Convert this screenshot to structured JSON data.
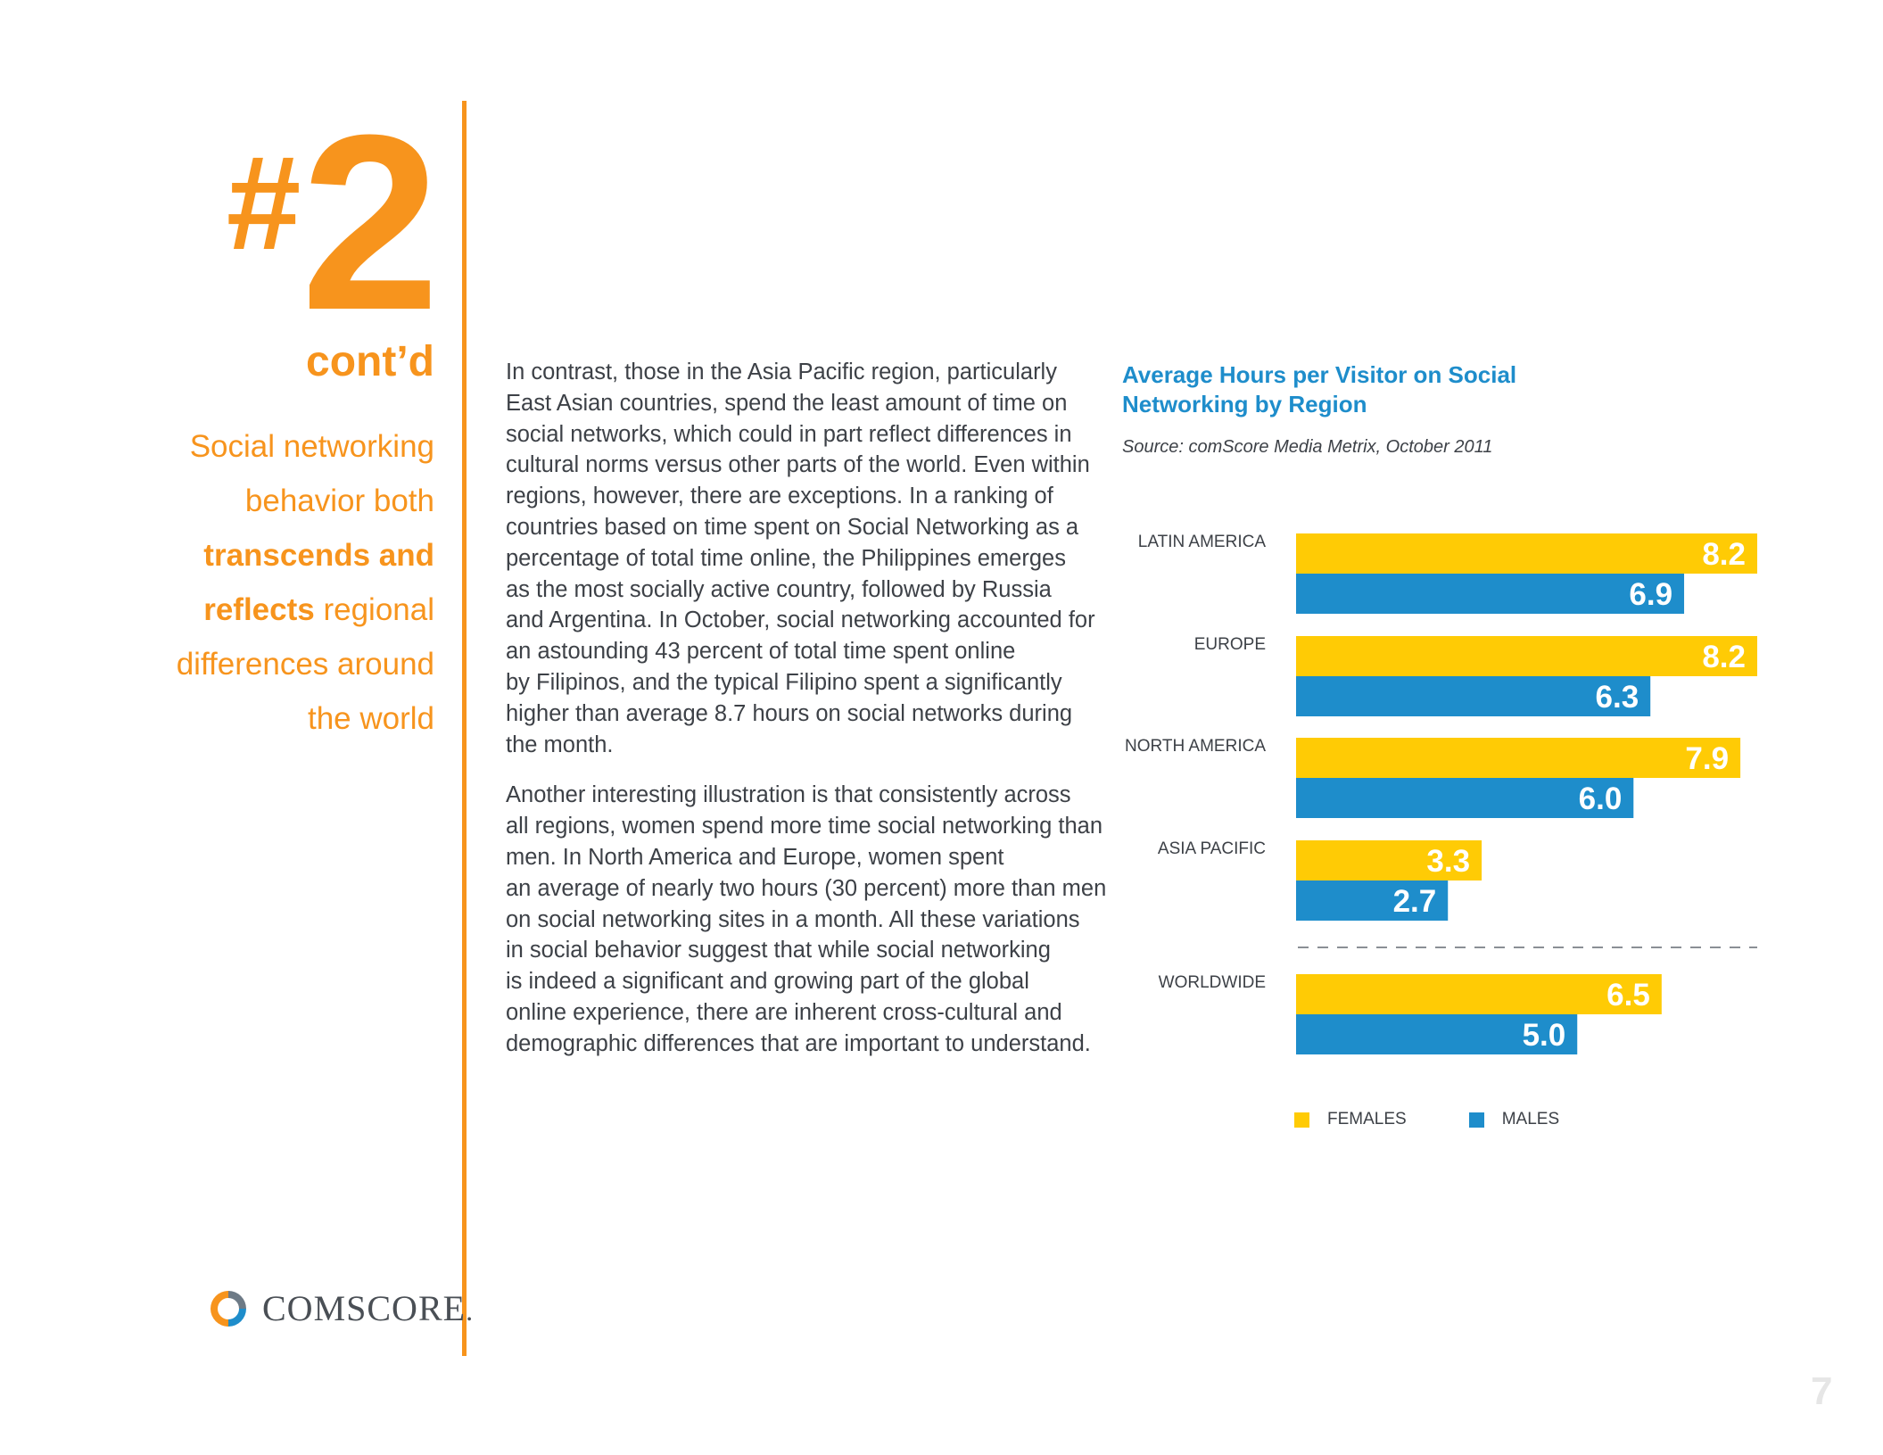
{
  "section": {
    "hash": "#",
    "number": "2",
    "contd": "cont’d"
  },
  "tagline": {
    "l1": "Social networking",
    "l2": "behavior both",
    "l3": "transcends and",
    "l4_bold": "reflects",
    "l4_rest": " regional",
    "l5": "differences around",
    "l6": "the world"
  },
  "body": {
    "p1": [
      "In contrast, those in the Asia Pacific region, particularly",
      "East Asian countries, spend the least amount of time on",
      "social networks, which could in part reflect differences in",
      "cultural norms versus other parts of the world. Even within",
      "regions, however, there are exceptions. In a ranking of",
      "countries based on time spent on Social Networking as a",
      "percentage of total time online, the Philippines emerges",
      "as the most socially active country, followed by Russia",
      "and Argentina. In October, social networking accounted for",
      "an astounding 43 percent of total time spent online",
      "by Filipinos, and the typical Filipino spent a significantly",
      "higher than average 8.7 hours on social networks during",
      "the month."
    ],
    "p2": [
      "Another interesting illustration is that consistently across",
      "all regions, women spend more time social networking than",
      "men. In North America and Europe, women spent",
      "an average of nearly two hours (30 percent) more than men",
      "on social networking sites in a month. All these variations",
      "in social behavior suggest that while social networking",
      "is indeed a significant and growing part of the global",
      "online experience, there are inherent cross-cultural and",
      "demographic differences that are important to understand."
    ]
  },
  "logo": {
    "text_main": "COMSCORE",
    "text_dot": "."
  },
  "page_number": "7",
  "colors": {
    "orange": "#F7941D",
    "females": "#FFCB05",
    "males": "#1E8DCB",
    "title_blue": "#1E8DCB"
  },
  "chart_data": {
    "type": "bar",
    "orientation": "horizontal",
    "title": "Average Hours per Visitor on Social Networking by Region",
    "title_lines": [
      "Average Hours per Visitor on Social",
      "Networking by Region"
    ],
    "source": "Source: comScore Media Metrix, October 2011",
    "categories": [
      "LATIN AMERICA",
      "EUROPE",
      "NORTH AMERICA",
      "ASIA PACIFIC",
      "WORLDWIDE"
    ],
    "series": [
      {
        "name": "FEMALES",
        "values": [
          8.2,
          8.2,
          7.9,
          3.3,
          6.5
        ],
        "labels": [
          "8.2",
          "8.2",
          "7.9",
          "3.3",
          "6.5"
        ]
      },
      {
        "name": "MALES",
        "values": [
          6.9,
          6.3,
          6.0,
          2.7,
          5.0
        ],
        "labels": [
          "6.9",
          "6.3",
          "6.0",
          "2.7",
          "5.0"
        ]
      }
    ],
    "xlim": [
      0,
      8.2
    ],
    "separator_before": "WORLDWIDE",
    "legend_position": "bottom",
    "grid": false
  }
}
